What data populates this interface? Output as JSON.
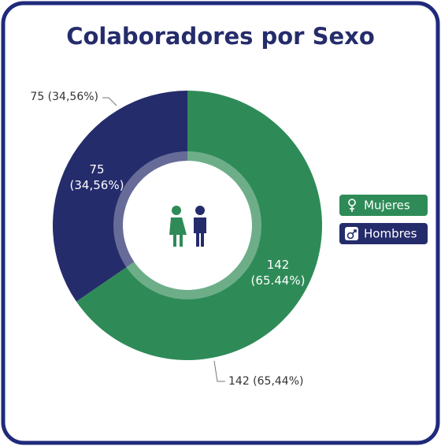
{
  "chart_data": {
    "type": "pie",
    "title": "Colaboradores por Sexo",
    "categories": [
      "Mujeres",
      "Hombres"
    ],
    "values": [
      142,
      75
    ],
    "colors": [
      "#2e8b57",
      "#252c6b"
    ],
    "value_labels": [
      "142 (65,44%)",
      "75 (34,56%)"
    ],
    "inner_labels": [
      [
        "142",
        "(65.44%)"
      ],
      [
        "75",
        "(34,56%)"
      ]
    ]
  }
}
